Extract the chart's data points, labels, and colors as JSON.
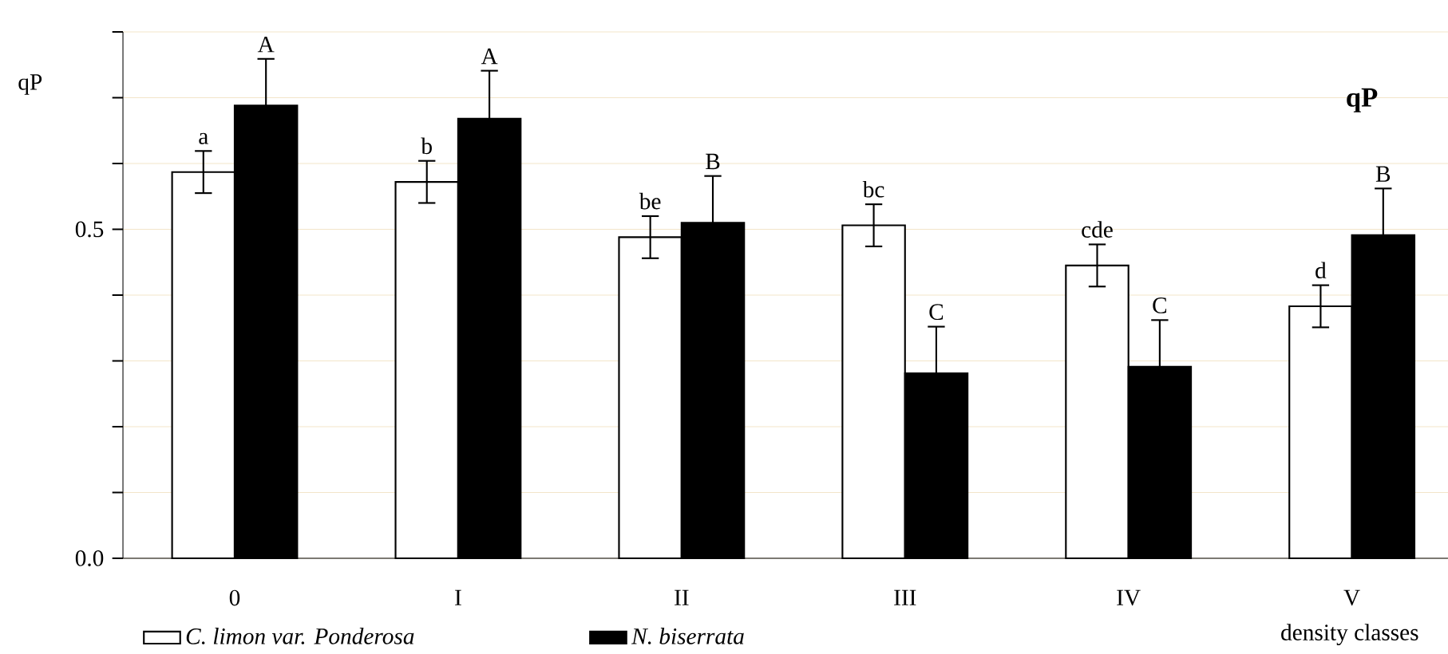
{
  "chart_data": {
    "type": "bar",
    "title": "qP",
    "ylabel": "qP",
    "xlabel": "density classes",
    "categories": [
      "0",
      "I",
      "II",
      "III",
      "IV",
      "V"
    ],
    "series": [
      {
        "name": "*C. limon var. Ponderosa*",
        "color": "#ffffff",
        "values": [
          0.587,
          0.572,
          0.488,
          0.506,
          0.445,
          0.383
        ],
        "errors": [
          0.032,
          0.032,
          0.032,
          0.032,
          0.032,
          0.032
        ],
        "value_labels": [
          "a",
          "b",
          "be",
          "bc",
          "cde",
          "d"
        ]
      },
      {
        "name": "*N. biserrata*",
        "color": "#000000",
        "values": [
          0.688,
          0.668,
          0.51,
          0.281,
          0.291,
          0.491
        ],
        "errors": [
          0.071,
          0.073,
          0.071,
          0.071,
          0.071,
          0.071
        ],
        "value_labels": [
          "A",
          "A",
          "B",
          "C",
          "C",
          "B"
        ]
      }
    ],
    "ylim": [
      0,
      0.8
    ],
    "yticks": [
      {
        "value": 0,
        "label": "0.0"
      },
      {
        "value": 0.1,
        "label": null
      },
      {
        "value": 0.2,
        "label": null
      },
      {
        "value": 0.3,
        "label": null
      },
      {
        "value": 0.4,
        "label": null
      },
      0.5,
      {
        "value": 0.6,
        "label": null
      },
      {
        "value": 0.7,
        "label": null
      },
      {
        "value": 0.8,
        "label": null
      }
    ],
    "grid": "y",
    "legend": "bottom"
  }
}
